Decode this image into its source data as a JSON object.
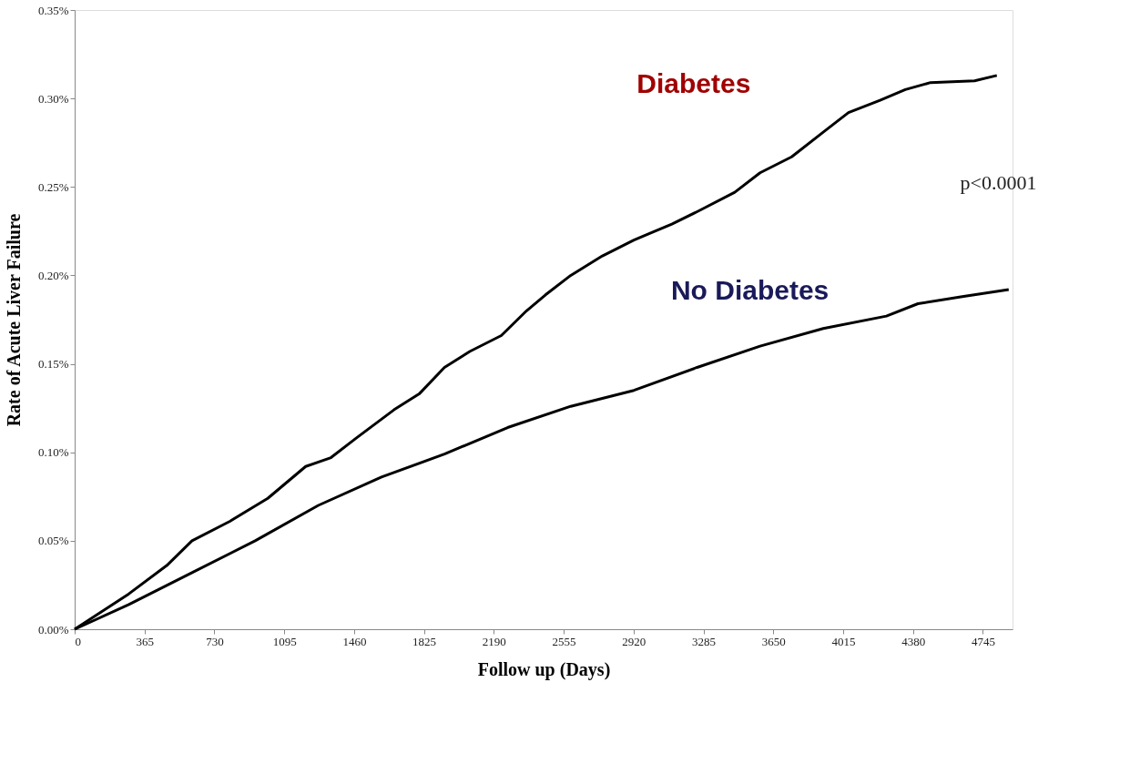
{
  "chart_data": {
    "type": "line",
    "xlabel": "Follow up (Days)",
    "ylabel": "Rate of Acute Liver Failure",
    "xlim": [
      0,
      4900
    ],
    "xticks": [
      0,
      365,
      730,
      1095,
      1460,
      1825,
      2190,
      2555,
      2920,
      3285,
      3650,
      4015,
      4380,
      4745
    ],
    "ylim": [
      0,
      0.35
    ],
    "yticks": [
      {
        "value": 0,
        "label": "0.00%"
      },
      {
        "value": 0.05,
        "label": "0.05%"
      },
      {
        "value": 0.1,
        "label": "0.10%"
      },
      {
        "value": 0.15,
        "label": "0.15%"
      },
      {
        "value": 0.2,
        "label": "0.20%"
      },
      {
        "value": 0.25,
        "label": "0.25%"
      },
      {
        "value": 0.3,
        "label": "0.30%"
      },
      {
        "value": 0.35,
        "label": "0.35%"
      }
    ],
    "grid": false,
    "marker": "none",
    "line_style": "solid",
    "annotations": [
      "p<0.0001"
    ],
    "series": [
      {
        "name": "Diabetes",
        "color": "#000000",
        "x": [
          0,
          283,
          481,
          613,
          811,
          1009,
          1207,
          1339,
          1471,
          1668,
          1800,
          1932,
          2064,
          2229,
          2361,
          2460,
          2592,
          2757,
          2922,
          3120,
          3252,
          3449,
          3581,
          3746,
          3911,
          4043,
          4208,
          4340,
          4472,
          4702,
          4818
        ],
        "values": [
          0,
          0.02,
          0.036,
          0.05,
          0.061,
          0.074,
          0.092,
          0.097,
          0.108,
          0.124,
          0.133,
          0.148,
          0.157,
          0.166,
          0.18,
          0.189,
          0.2,
          0.211,
          0.22,
          0.229,
          0.236,
          0.247,
          0.258,
          0.267,
          0.281,
          0.292,
          0.299,
          0.305,
          0.309,
          0.31,
          0.313
        ]
      },
      {
        "name": "No Diabetes",
        "color": "#000000",
        "x": [
          0,
          283,
          613,
          943,
          1273,
          1603,
          1932,
          2262,
          2592,
          2922,
          3252,
          3581,
          3911,
          4241,
          4406,
          4637,
          4880
        ],
        "values": [
          0,
          0.014,
          0.032,
          0.05,
          0.07,
          0.086,
          0.099,
          0.114,
          0.126,
          0.135,
          0.148,
          0.16,
          0.17,
          0.177,
          0.184,
          0.188,
          0.192
        ]
      }
    ]
  }
}
